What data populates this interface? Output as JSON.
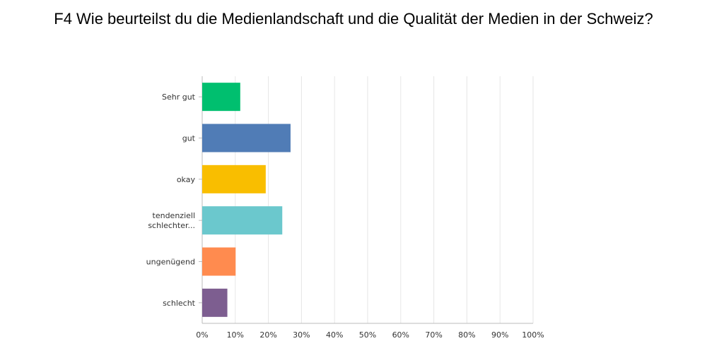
{
  "chart_data": {
    "type": "bar",
    "orientation": "horizontal",
    "title": "F4 Wie beurteilst du die Medienlandschaft und die Qualität der Medien in der Schweiz?",
    "categories": [
      [
        "Sehr gut"
      ],
      [
        "gut"
      ],
      [
        "okay"
      ],
      [
        "tendenziell",
        "schlechter..."
      ],
      [
        "ungenügend"
      ],
      [
        "schlecht"
      ]
    ],
    "values": [
      11.5,
      26.7,
      19.2,
      24.2,
      10.1,
      7.6
    ],
    "colors": [
      "#00bf6f",
      "#507cb6",
      "#f9be00",
      "#6bc8cd",
      "#ff8b4f",
      "#7d5e90"
    ],
    "xlim": [
      0,
      100
    ],
    "xticks": [
      "0%",
      "10%",
      "20%",
      "30%",
      "40%",
      "50%",
      "60%",
      "70%",
      "80%",
      "90%",
      "100%"
    ],
    "grid": true,
    "legend": "none"
  }
}
